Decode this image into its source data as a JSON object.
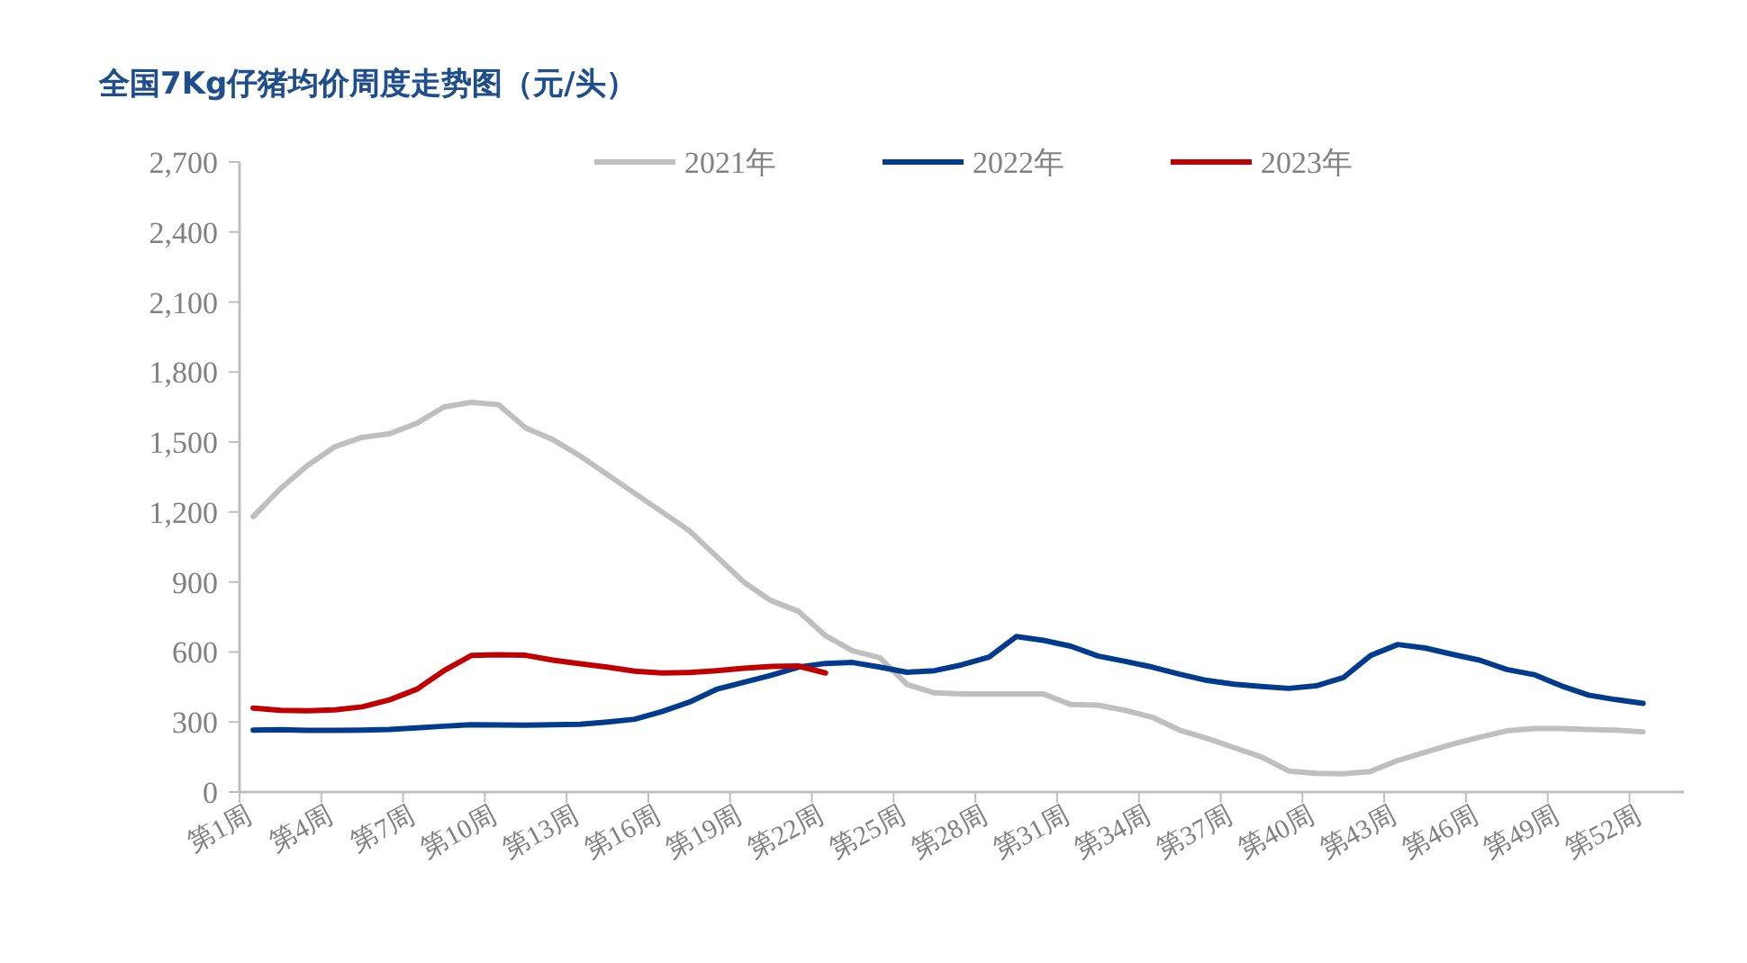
{
  "chart_data": {
    "type": "line",
    "title": "全国7Kg仔猪均价周度走势图（元/头）",
    "categories": [
      "第1周",
      null,
      null,
      "第4周",
      null,
      null,
      "第7周",
      null,
      null,
      "第10周",
      null,
      null,
      "第13周",
      null,
      null,
      "第16周",
      null,
      null,
      "第19周",
      null,
      null,
      "第22周",
      null,
      null,
      "第25周",
      null,
      null,
      "第28周",
      null,
      null,
      "第31周",
      null,
      null,
      "第34周",
      null,
      null,
      "第37周",
      null,
      null,
      "第40周",
      null,
      null,
      "第43周",
      null,
      null,
      "第46周",
      null,
      null,
      "第49周",
      null,
      null,
      "第52周",
      null
    ],
    "ylim": [
      0,
      2700
    ],
    "yticks": [
      0,
      {
        "value": 300,
        "label": "300"
      },
      {
        "value": 600,
        "label": "600"
      },
      {
        "value": 900,
        "label": "900"
      },
      {
        "value": 1200,
        "label": "1,200"
      },
      {
        "value": 1500,
        "label": "1,500"
      },
      {
        "value": 1800,
        "label": "1,800"
      },
      {
        "value": 2100,
        "label": "2,100"
      },
      {
        "value": 2400,
        "label": "2,400"
      },
      {
        "value": 2700,
        "label": "2,700"
      }
    ],
    "grid": false,
    "legend": "top",
    "marker": "none",
    "line_style": "solid",
    "series": [
      {
        "name": "2021年",
        "color": "#bfbfbf",
        "values": [
          1180,
          1300,
          1400,
          1480,
          1520,
          1535,
          1580,
          1650,
          1670,
          1660,
          1560,
          1510,
          1440,
          1360,
          1280,
          1200,
          1120,
          1010,
          900,
          820,
          775,
          670,
          605,
          575,
          460,
          425,
          420,
          420,
          420,
          420,
          375,
          372,
          350,
          320,
          265,
          230,
          190,
          150,
          90,
          80,
          78,
          88,
          135,
          170,
          205,
          235,
          262,
          272,
          272,
          268,
          265,
          258,
          null
        ]
      },
      {
        "name": "2022年",
        "color": "#003b8e",
        "values": [
          265,
          267,
          264,
          264,
          265,
          268,
          275,
          282,
          288,
          287,
          286,
          288,
          290,
          300,
          312,
          345,
          385,
          440,
          470,
          500,
          535,
          551,
          555,
          535,
          513,
          520,
          545,
          578,
          666,
          650,
          625,
          583,
          560,
          535,
          505,
          478,
          462,
          452,
          444,
          455,
          490,
          585,
          632,
          617,
          590,
          565,
          525,
          503,
          455,
          415,
          396,
          380,
          null
        ]
      },
      {
        "name": "2023年",
        "color": "#c00000",
        "values": [
          360,
          350,
          348,
          352,
          365,
          395,
          440,
          520,
          585,
          588,
          586,
          565,
          550,
          535,
          518,
          510,
          512,
          520,
          530,
          538,
          540,
          510,
          null,
          null,
          null,
          null,
          null,
          null,
          null,
          null,
          null,
          null,
          null,
          null,
          null,
          null,
          null,
          null,
          null,
          null,
          null,
          null,
          null,
          null,
          null,
          null,
          null,
          null,
          null,
          null,
          null,
          null,
          null
        ]
      }
    ]
  }
}
